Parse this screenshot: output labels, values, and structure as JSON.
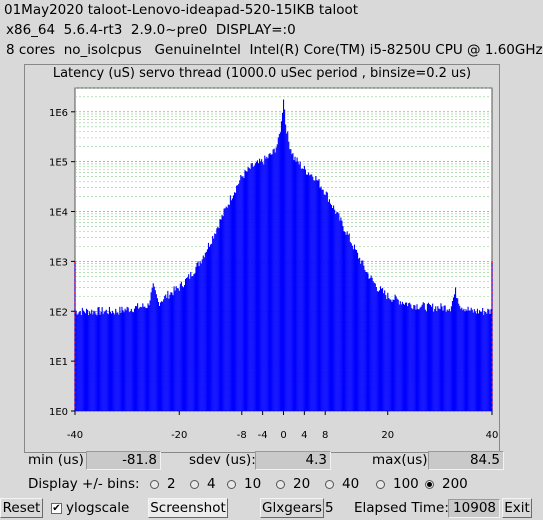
{
  "header": {
    "line1": "01May2020 taloot-Lenovo-ideapad-520-15IKB taloot",
    "line2": "x86_64  5.6.4-rt3  2.9.0~pre0  DISPLAY=:0",
    "line3": "8 cores  no_isolcpus   GenuineIntel  Intel(R) Core(TM) i5-8250U CPU @ 1.60GHz"
  },
  "chart_data": {
    "type": "bar",
    "title": "Latency (uS) servo thread (1000.0 uSec period , binsize=0.2 us)",
    "xlim": [
      -40,
      40
    ],
    "ylim": [
      1,
      3000000
    ],
    "y_scale": "log",
    "x_ticks": [
      -40,
      -20,
      -8,
      -4,
      0,
      4,
      8,
      20,
      40
    ],
    "y_ticks": [
      "1E0",
      "1E1",
      "1E2",
      "1E3",
      "1E4",
      "1E5",
      "1E6"
    ],
    "grid": true,
    "bar_color": "#0000ff",
    "outlier_bins": [
      {
        "x": -40,
        "count": 1000
      },
      {
        "x": 40,
        "count": 1000
      }
    ],
    "envelope": [
      [
        -40,
        100
      ],
      [
        -36,
        100
      ],
      [
        -32,
        100
      ],
      [
        -30,
        110
      ],
      [
        -28,
        120
      ],
      [
        -26,
        130
      ],
      [
        -25,
        300
      ],
      [
        -24,
        150
      ],
      [
        -22,
        220
      ],
      [
        -20,
        300
      ],
      [
        -18,
        500
      ],
      [
        -16,
        1000
      ],
      [
        -14,
        2500
      ],
      [
        -12,
        7000
      ],
      [
        -10,
        20000
      ],
      [
        -8,
        50000
      ],
      [
        -6,
        80000
      ],
      [
        -4,
        100000
      ],
      [
        -2,
        150000
      ],
      [
        -1,
        250000
      ],
      [
        -0.4,
        600000
      ],
      [
        0,
        2000000
      ],
      [
        0.4,
        600000
      ],
      [
        1,
        250000
      ],
      [
        2,
        120000
      ],
      [
        4,
        70000
      ],
      [
        6,
        50000
      ],
      [
        8,
        25000
      ],
      [
        10,
        10000
      ],
      [
        12,
        4000
      ],
      [
        14,
        1500
      ],
      [
        16,
        600
      ],
      [
        18,
        300
      ],
      [
        20,
        200
      ],
      [
        24,
        140
      ],
      [
        28,
        120
      ],
      [
        32,
        120
      ],
      [
        33,
        250
      ],
      [
        34,
        130
      ],
      [
        36,
        100
      ],
      [
        38,
        100
      ],
      [
        40,
        100
      ]
    ]
  },
  "stats": {
    "min_label": "min (us)",
    "min_value": "-81.8",
    "sdev_label": "sdev (us):",
    "sdev_value": "4.3",
    "max_label": "max(us)",
    "max_value": "84.5"
  },
  "bins": {
    "label": "Display +/- bins:",
    "options": [
      "2",
      "4",
      "10",
      "20",
      "40",
      "100",
      "200"
    ],
    "selected": "200"
  },
  "footer": {
    "reset_label": "Reset",
    "ylog_label": "ylogscale",
    "ylog_checked": true,
    "screenshot_label": "Screenshot",
    "glxgears_label": "Glxgears",
    "glxgears_count": "5",
    "elapsed_label": "Elapsed Time:",
    "elapsed_value": "10908",
    "exit_label": "Exit"
  }
}
